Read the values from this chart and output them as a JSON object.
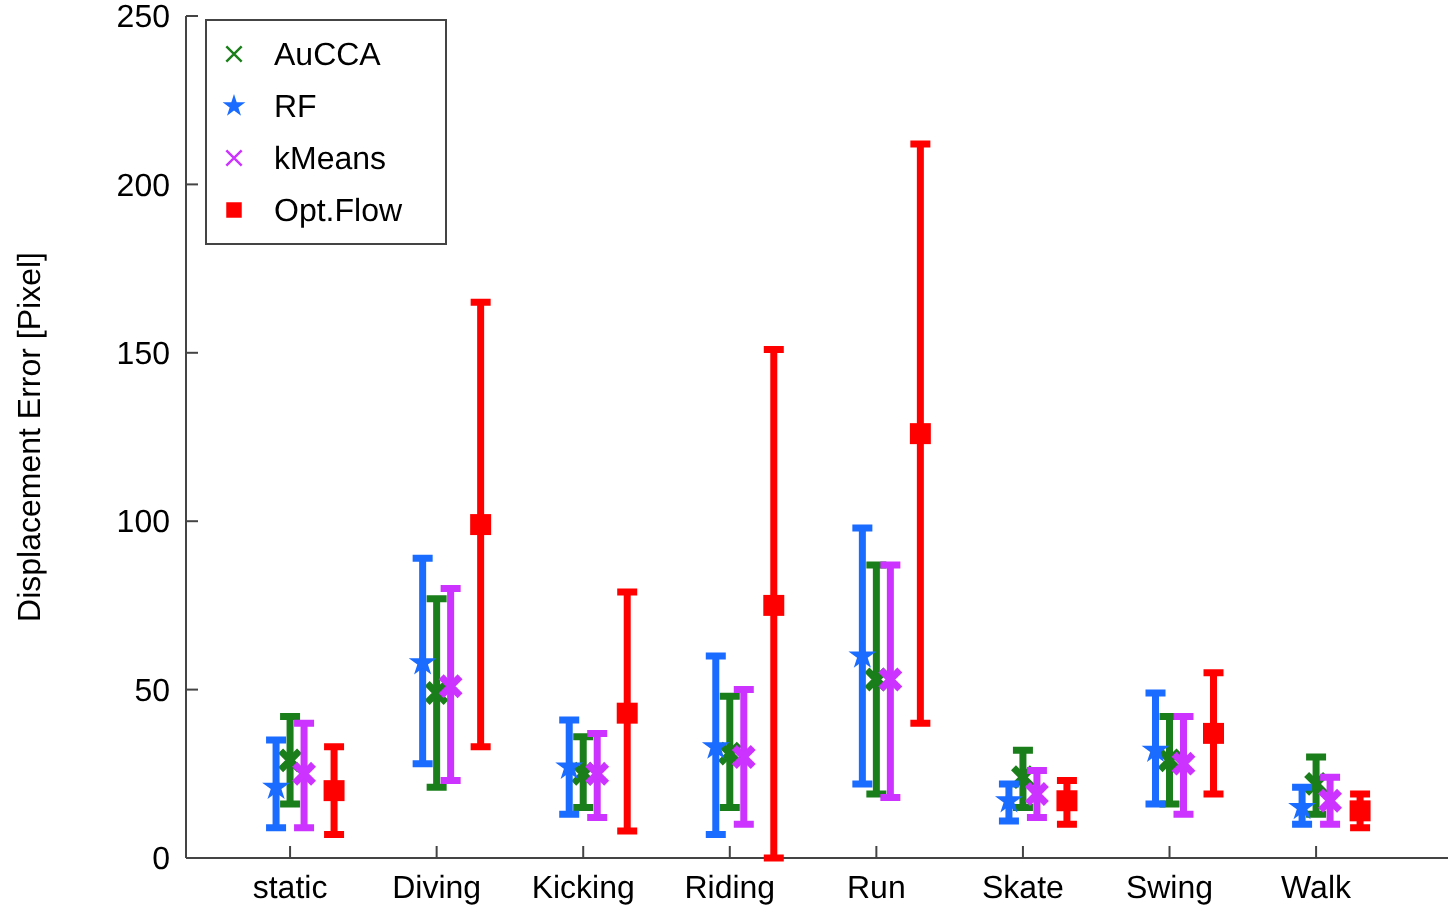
{
  "chart_data": {
    "type": "scatter",
    "ylabel": "Displacement Error [Pixel]",
    "categories": [
      "static",
      "Diving",
      "Kicking",
      "Riding",
      "Run",
      "Skate",
      "Swing",
      "Walk"
    ],
    "ylim": [
      0,
      250
    ],
    "yticks": [
      0,
      50,
      100,
      150,
      200,
      250
    ],
    "grid": false,
    "legend": "top left",
    "series": [
      {
        "name": "AuCCA",
        "color": "#1a7f1a",
        "marker": "cross",
        "values": [
          29,
          49,
          25,
          31,
          53,
          24,
          29,
          22
        ],
        "errors": [
          [
            16,
            42
          ],
          [
            21,
            77
          ],
          [
            15,
            36
          ],
          [
            15,
            48
          ],
          [
            19,
            87
          ],
          [
            15,
            32
          ],
          [
            16,
            42
          ],
          [
            13,
            30
          ]
        ]
      },
      {
        "name": "RF",
        "color": "#1a6bff",
        "marker": "star",
        "values": [
          21,
          58,
          27,
          33,
          60,
          17,
          32,
          15
        ],
        "errors": [
          [
            9,
            35
          ],
          [
            28,
            89
          ],
          [
            13,
            41
          ],
          [
            7,
            60
          ],
          [
            22,
            98
          ],
          [
            11,
            22
          ],
          [
            16,
            49
          ],
          [
            10,
            21
          ]
        ]
      },
      {
        "name": "kMeans",
        "color": "#cc33ff",
        "marker": "cross",
        "values": [
          25,
          51,
          25,
          30,
          53,
          19,
          28,
          17
        ],
        "errors": [
          [
            9,
            40
          ],
          [
            23,
            80
          ],
          [
            12,
            37
          ],
          [
            10,
            50
          ],
          [
            18,
            87
          ],
          [
            12,
            26
          ],
          [
            13,
            42
          ],
          [
            10,
            24
          ]
        ]
      },
      {
        "name": "Opt.Flow",
        "color": "#ff0000",
        "marker": "square",
        "values": [
          20,
          99,
          43,
          75,
          126,
          17,
          37,
          14
        ],
        "errors": [
          [
            7,
            33
          ],
          [
            33,
            165
          ],
          [
            8,
            79
          ],
          [
            0,
            151
          ],
          [
            40,
            212
          ],
          [
            10,
            23
          ],
          [
            19,
            55
          ],
          [
            9,
            19
          ]
        ]
      }
    ]
  }
}
